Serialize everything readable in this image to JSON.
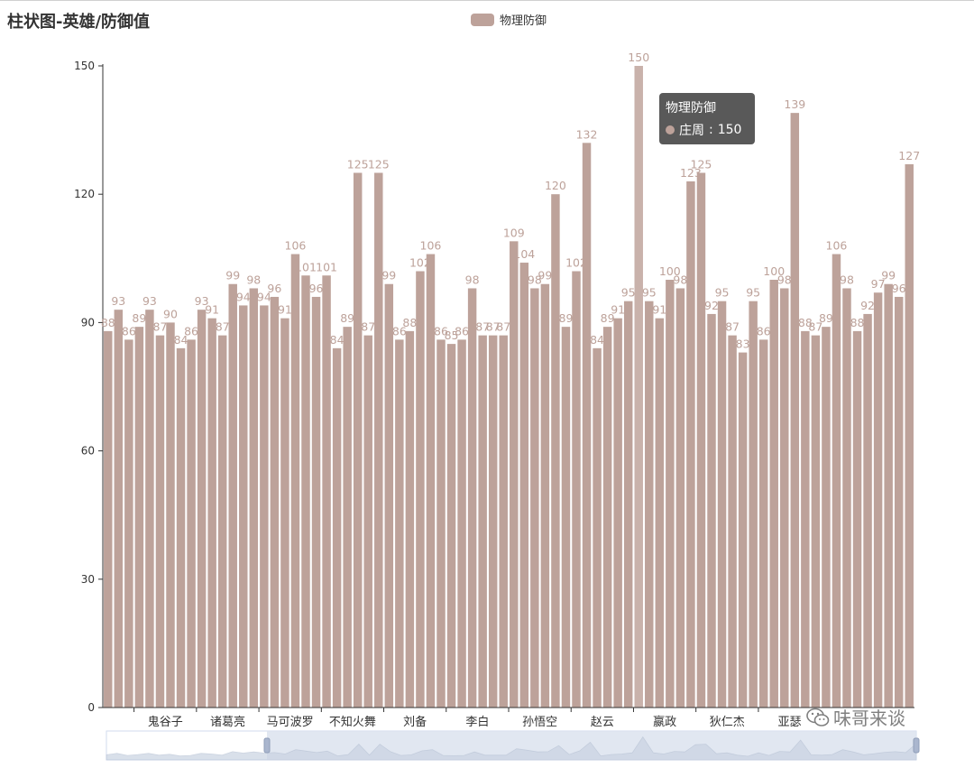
{
  "title": "柱状图-英雄/防御值",
  "legend": {
    "label": "物理防御",
    "color": "#bda29a"
  },
  "tooltip": {
    "series": "物理防御",
    "hero": "庄周",
    "value": "150"
  },
  "watermark": {
    "text": "味哥来谈"
  },
  "chart_data": {
    "type": "bar",
    "title": "柱状图-英雄/防御值",
    "xlabel": "",
    "ylabel": "",
    "ylim": [
      0,
      150
    ],
    "yticks": [
      0,
      30,
      60,
      90,
      120,
      150
    ],
    "visible_category_labels": [
      "鬼谷子",
      "诸葛亮",
      "马可波罗",
      "不知火舞",
      "刘备",
      "李白",
      "孙悟空",
      "赵云",
      "嬴政",
      "狄仁杰",
      "亚瑟"
    ],
    "label_positions": [
      3,
      9,
      15,
      21,
      27,
      33,
      39,
      45,
      51,
      57,
      63
    ],
    "series": [
      {
        "name": "物理防御",
        "color": "#bda29a",
        "highlight_index": 51,
        "values": [
          88,
          93,
          86,
          89,
          93,
          87,
          90,
          84,
          86,
          93,
          91,
          87,
          99,
          94,
          98,
          94,
          96,
          91,
          106,
          101,
          96,
          101,
          84,
          89,
          125,
          87,
          125,
          99,
          86,
          88,
          102,
          106,
          86,
          85,
          86,
          98,
          87,
          87,
          87,
          109,
          104,
          98,
          99,
          120,
          89,
          102,
          132,
          84,
          89,
          91,
          95,
          150,
          95,
          91,
          100,
          98,
          123,
          125,
          92,
          95,
          87,
          83,
          95,
          86,
          100,
          98,
          139,
          88,
          87,
          89,
          106,
          98,
          88,
          92,
          97,
          99,
          96,
          127
        ]
      }
    ]
  }
}
